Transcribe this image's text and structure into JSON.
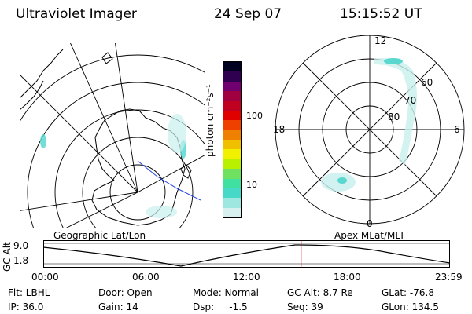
{
  "header": {
    "instrument": "Ultraviolet Imager",
    "date": "24 Sep 07",
    "time": "15:15:52 UT"
  },
  "colorbar": {
    "unit_label": "photon cm⁻²s⁻¹",
    "ticks": [
      "100",
      "10"
    ],
    "colors": [
      "#d8f0f0",
      "#9ee6e0",
      "#48d8c8",
      "#40e0a0",
      "#70e060",
      "#b8f000",
      "#f0f000",
      "#f0c000",
      "#f08000",
      "#f04000",
      "#e00000",
      "#c00020",
      "#a00040",
      "#700070",
      "#300050",
      "#000020"
    ]
  },
  "geo_panel": {
    "label": "Geographic Lat/Lon"
  },
  "polar_panel": {
    "label": "Apex MLat/MLT",
    "mlt_labels": {
      "top": "12",
      "left": "18",
      "right": "6",
      "bottom": "0"
    },
    "lat_labels": [
      "60",
      "70",
      "80"
    ]
  },
  "timeline": {
    "ylabel": "GC Alt",
    "yticks": [
      "9.0",
      "1.8"
    ],
    "xticks": [
      "00:00",
      "06:00",
      "12:00",
      "18:00",
      "23:59"
    ],
    "marker_color": "#e00000",
    "marker_time_fraction": 0.635
  },
  "info": {
    "flt": "Flt: LBHL",
    "ip": "IP: 36.0",
    "door": "Door: Open",
    "gain": "Gain: 14",
    "mode": "Mode: Normal",
    "dsp": "Dsp:     -1.5",
    "gcalt": "GC Alt: 8.7 Re",
    "seq": "Seq: 39",
    "glat": "GLat: -76.8",
    "glon": "GLon: 134.5"
  }
}
